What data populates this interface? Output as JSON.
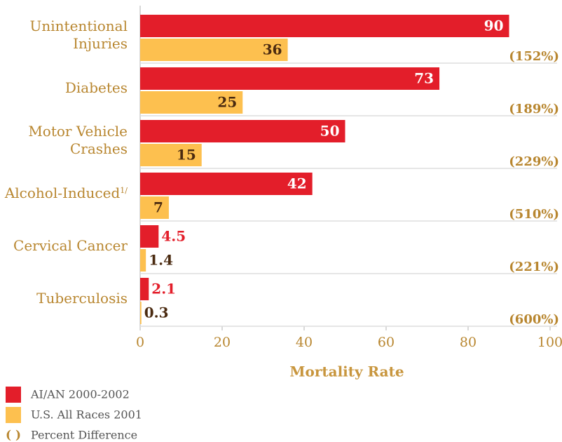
{
  "chart_data": {
    "type": "bar",
    "orientation": "horizontal",
    "categories": [
      "Unintentional\nInjuries",
      "Diabetes",
      "Motor Vehicle\nCrashes",
      "Alcohol-Induced",
      "Cervical Cancer",
      "Tuberculosis"
    ],
    "annotations": [
      {
        "category": 3,
        "text": "1/"
      }
    ],
    "series": [
      {
        "name": "AI/AN 2000-2002",
        "color": "#e31e2a",
        "values": [
          90,
          73,
          50,
          42,
          4.5,
          2.1
        ]
      },
      {
        "name": "U.S. All Races 2001",
        "color": "#fdc04f",
        "values": [
          36,
          25,
          15,
          7,
          1.4,
          0.3
        ]
      }
    ],
    "percent_difference": {
      "name": "Percent Difference",
      "symbol": "( )",
      "values": [
        152,
        189,
        229,
        510,
        221,
        600
      ],
      "value_labels": [
        "(152%)",
        "(189%)",
        "(229%)",
        "(510%)",
        "(221%)",
        "(600%)"
      ]
    },
    "xlabel": "Mortality Rate",
    "xlim": [
      0,
      100
    ],
    "xticks": [
      0,
      20,
      40,
      60,
      80,
      100
    ]
  }
}
